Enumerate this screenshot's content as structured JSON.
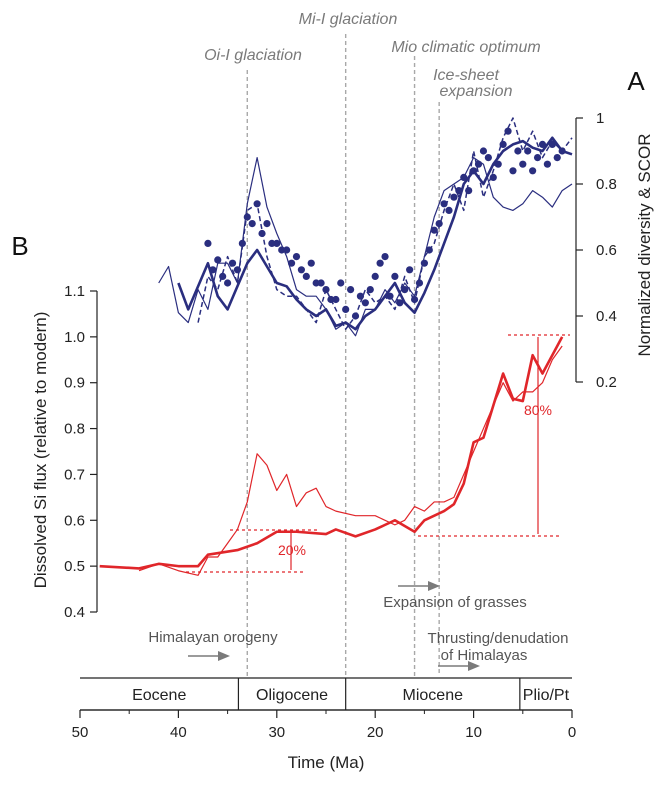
{
  "panels": {
    "top": "A",
    "bottom": "B"
  },
  "colors": {
    "diversity": "#2a2e7f",
    "si_flux": "#e0262a",
    "event_line": "#a8a8a8",
    "annotation": "#555555"
  },
  "events": [
    {
      "label": "Oi-I glaciation",
      "age": 33
    },
    {
      "label": "Mi-I glaciation",
      "age": 23
    },
    {
      "label": "Mio climatic optimum",
      "age": 16
    },
    {
      "label": "Ice-sheet",
      "label2": "expansion",
      "age": 13.5
    }
  ],
  "notes": {
    "himalaya_orogeny": "Himalayan orogeny",
    "grasses": "Expansion of grasses",
    "thrust_line1": "Thrusting/denudation",
    "thrust_line2": "of Himalayas"
  },
  "epochs": [
    {
      "name": "Eocene",
      "from": 50,
      "to": 33.9
    },
    {
      "name": "Oligocene",
      "from": 33.9,
      "to": 23
    },
    {
      "name": "Miocene",
      "from": 23,
      "to": 5.3
    },
    {
      "name": "Plio/Pt",
      "from": 5.3,
      "to": 0
    }
  ],
  "percent_labels": {
    "small": "20%",
    "large": "80%"
  },
  "chart_data": [
    {
      "panel": "A",
      "type": "line",
      "ylabel": "Normalized diversity & SCOR",
      "ylim": [
        0.2,
        1.0
      ],
      "yticks": [
        0.2,
        0.4,
        0.6,
        0.8,
        1
      ],
      "ytick_labels": [
        "0.2",
        "0.4",
        "0.6",
        "0.8",
        "1"
      ],
      "xlim": [
        50,
        0
      ],
      "series": [
        {
          "style": "thick",
          "x": [
            40,
            39,
            37,
            36,
            35,
            34,
            33,
            32,
            31,
            30,
            29,
            28,
            27,
            26,
            25,
            24,
            23,
            22,
            21,
            20,
            19,
            18,
            17,
            16,
            15,
            14,
            13,
            12,
            11,
            10,
            9,
            8,
            7,
            6,
            5,
            4,
            3,
            2,
            1,
            0
          ],
          "y": [
            0.5,
            0.42,
            0.56,
            0.46,
            0.42,
            0.49,
            0.56,
            0.6,
            0.55,
            0.5,
            0.49,
            0.45,
            0.42,
            0.4,
            0.42,
            0.37,
            0.38,
            0.36,
            0.4,
            0.42,
            0.46,
            0.5,
            0.44,
            0.41,
            0.47,
            0.54,
            0.62,
            0.7,
            0.8,
            0.84,
            0.8,
            0.86,
            0.9,
            0.92,
            0.93,
            0.91,
            0.9,
            0.94,
            0.9,
            0.89
          ]
        },
        {
          "style": "thin",
          "x": [
            42,
            41,
            40,
            39,
            38,
            37,
            36,
            35,
            34,
            33,
            32,
            31,
            30,
            29,
            28,
            27,
            26,
            25,
            24,
            23,
            22,
            21,
            20,
            19,
            18,
            17,
            16,
            15,
            14,
            13,
            12,
            11,
            10,
            9,
            8,
            7,
            6,
            5,
            4,
            3,
            2,
            1,
            0
          ],
          "y": [
            0.5,
            0.55,
            0.41,
            0.38,
            0.48,
            0.42,
            0.56,
            0.56,
            0.5,
            0.74,
            0.88,
            0.73,
            0.65,
            0.58,
            0.48,
            0.46,
            0.46,
            0.42,
            0.36,
            0.38,
            0.34,
            0.42,
            0.42,
            0.48,
            0.44,
            0.5,
            0.46,
            0.58,
            0.7,
            0.78,
            0.8,
            0.82,
            0.88,
            0.86,
            0.76,
            0.73,
            0.72,
            0.74,
            0.78,
            0.76,
            0.73,
            0.78,
            0.8
          ]
        },
        {
          "style": "dashed",
          "x": [
            38,
            37,
            36,
            35,
            34,
            33,
            32,
            31,
            30,
            29,
            28,
            27,
            26,
            25,
            24,
            23,
            22,
            21,
            20,
            19,
            18,
            17,
            16,
            15,
            14,
            13,
            12,
            11,
            10,
            9,
            8,
            7,
            6,
            5,
            4,
            3,
            2,
            1,
            0
          ],
          "y": [
            0.38,
            0.52,
            0.48,
            0.58,
            0.5,
            0.72,
            0.74,
            0.58,
            0.48,
            0.46,
            0.46,
            0.42,
            0.38,
            0.48,
            0.42,
            0.36,
            0.4,
            0.48,
            0.44,
            0.46,
            0.42,
            0.52,
            0.44,
            0.58,
            0.62,
            0.72,
            0.8,
            0.72,
            0.9,
            0.76,
            0.84,
            0.94,
            1.0,
            0.9,
            0.96,
            0.88,
            0.93,
            0.9,
            0.94
          ]
        },
        {
          "style": "markers",
          "x": [
            37,
            36.5,
            36,
            35.5,
            35,
            34.5,
            34,
            33.5,
            33,
            32.5,
            32,
            31.5,
            31,
            30.5,
            30,
            29.5,
            29,
            28.5,
            28,
            27.5,
            27,
            26.5,
            26,
            25.5,
            25,
            24.5,
            24,
            23.5,
            23,
            22.5,
            22,
            21.5,
            21,
            20.5,
            20,
            19.5,
            19,
            18.5,
            18,
            17.5,
            17,
            16.5,
            16,
            15.5,
            15,
            14.5,
            14,
            13.5,
            13,
            12.5,
            12,
            11.5,
            11,
            10.5,
            10,
            9.5,
            9,
            8.5,
            8,
            7.5,
            7,
            6.5,
            6,
            5.5,
            5,
            4.5,
            4,
            3.5,
            3,
            2.5,
            2,
            1.5,
            1
          ],
          "y": [
            0.62,
            0.54,
            0.57,
            0.52,
            0.5,
            0.56,
            0.54,
            0.62,
            0.7,
            0.68,
            0.74,
            0.65,
            0.68,
            0.62,
            0.62,
            0.6,
            0.6,
            0.56,
            0.58,
            0.54,
            0.52,
            0.56,
            0.5,
            0.5,
            0.48,
            0.45,
            0.45,
            0.5,
            0.42,
            0.48,
            0.4,
            0.46,
            0.44,
            0.48,
            0.52,
            0.56,
            0.58,
            0.46,
            0.52,
            0.44,
            0.48,
            0.54,
            0.45,
            0.5,
            0.56,
            0.6,
            0.66,
            0.68,
            0.74,
            0.72,
            0.76,
            0.78,
            0.82,
            0.78,
            0.84,
            0.86,
            0.9,
            0.88,
            0.82,
            0.86,
            0.92,
            0.96,
            0.84,
            0.9,
            0.86,
            0.9,
            0.84,
            0.88,
            0.92,
            0.86,
            0.92,
            0.88,
            0.9
          ]
        }
      ]
    },
    {
      "panel": "B",
      "type": "line",
      "ylabel": "Dissolved Si flux (relative to modern)",
      "xlabel": "Time (Ma)",
      "ylim": [
        0.4,
        1.1
      ],
      "yticks": [
        0.4,
        0.5,
        0.6,
        0.7,
        0.8,
        0.9,
        1.0,
        1.1
      ],
      "ytick_labels": [
        "0.4",
        "0.5",
        "0.6",
        "0.7",
        "0.8",
        "0.9",
        "1.0",
        "1.1"
      ],
      "xlim": [
        50,
        0
      ],
      "xticks": [
        50,
        40,
        30,
        20,
        10,
        0
      ],
      "xtick_labels": [
        "50",
        "40",
        "30",
        "20",
        "10",
        "0"
      ],
      "series": [
        {
          "style": "thick",
          "x": [
            48,
            44,
            42,
            40,
            38,
            37,
            34,
            32,
            30,
            28,
            25,
            24,
            22,
            20,
            19,
            18,
            16,
            15,
            13,
            12,
            11,
            10,
            9,
            8,
            7,
            6,
            5,
            4,
            3,
            1
          ],
          "y": [
            0.5,
            0.495,
            0.505,
            0.5,
            0.5,
            0.525,
            0.535,
            0.55,
            0.575,
            0.575,
            0.57,
            0.58,
            0.565,
            0.58,
            0.59,
            0.6,
            0.575,
            0.6,
            0.62,
            0.635,
            0.68,
            0.77,
            0.78,
            0.85,
            0.92,
            0.865,
            0.86,
            0.96,
            0.92,
            1.0
          ]
        },
        {
          "style": "thin",
          "x": [
            44,
            42,
            40,
            38,
            37,
            36,
            35,
            34,
            33,
            32,
            31,
            30,
            29,
            28,
            27,
            26,
            25,
            24,
            22,
            20,
            18,
            17,
            16,
            15,
            14,
            13,
            12,
            11,
            10,
            9,
            8,
            7,
            6,
            5,
            4,
            3,
            2,
            1
          ],
          "y": [
            0.49,
            0.505,
            0.49,
            0.48,
            0.52,
            0.52,
            0.55,
            0.58,
            0.64,
            0.745,
            0.72,
            0.665,
            0.7,
            0.63,
            0.66,
            0.67,
            0.63,
            0.62,
            0.61,
            0.61,
            0.59,
            0.6,
            0.63,
            0.62,
            0.64,
            0.64,
            0.65,
            0.7,
            0.75,
            0.8,
            0.85,
            0.9,
            0.86,
            0.88,
            0.88,
            0.9,
            0.95,
            0.98
          ]
        }
      ]
    }
  ]
}
